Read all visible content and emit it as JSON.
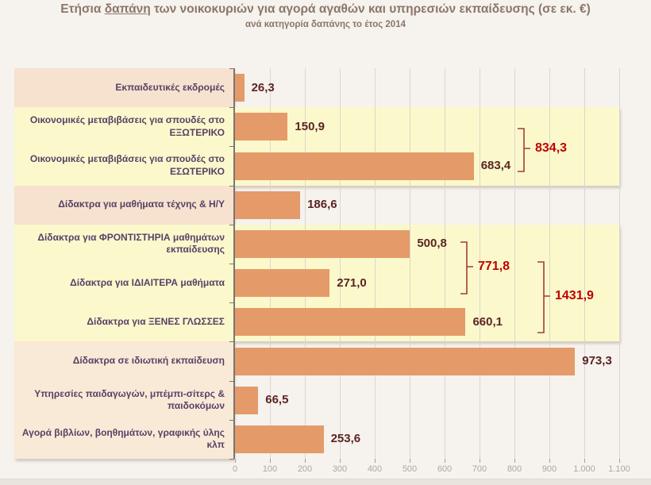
{
  "title": {
    "part1": "Ετήσια ",
    "underlined": "δαπάνη",
    "part2": " των νοικοκυριών για αγορά αγαθών και υπηρεσιών εκπαίδευσης (σε εκ. €)",
    "subtitle": "ανά κατηγορία δαπάνης το έτος 2014"
  },
  "chart_data": {
    "type": "bar",
    "orientation": "horizontal",
    "title": "Ετήσια δαπάνη των νοικοκυριών για αγορά αγαθών και υπηρεσιών εκπαίδευσης (σε εκ. €)",
    "subtitle": "ανά κατηγορία δαπάνης το έτος 2014",
    "unit": "εκ. €",
    "categories": [
      "Εκπαιδευτικές εκδρομές",
      "Οικονομικές μεταβιβάσεις για σπουδές στο ΕΞΩΤΕΡΙΚΟ",
      "Οικονομικές μεταβιβάσεις για σπουδές στο ΕΣΩΤΕΡΙΚΟ",
      "Δίδακτρα για μαθήματα τέχνης & Η/Υ",
      "Δίδακτρα για ΦΡΟΝΤΙΣΤΗΡΙΑ μαθημάτων εκπαίδευσης",
      "Δίδακτρα για ΙΔΙΑΙΤΕΡΑ μαθήματα",
      "Δίδακτρα για ΞΕΝΕΣ ΓΛΩΣΣΕΣ",
      "Δίδακτρα σε ιδιωτική εκπαίδευση",
      "Υπηρεσίες παιδαγωγών, μπέμπι-σίτερς & παιδοκόμων",
      "Αγορά βιβλίων, βοηθημάτων, γραφικής ύλης κλπ"
    ],
    "values": [
      26.3,
      150.9,
      683.4,
      186.6,
      500.8,
      271.0,
      660.1,
      973.3,
      66.5,
      253.6
    ],
    "value_labels": [
      "26,3",
      "150,9",
      "683,4",
      "186,6",
      "500,8",
      "271,0",
      "660,1",
      "973,3",
      "66,5",
      "253,6"
    ],
    "groups": [
      {
        "display": "834,3",
        "value": 834.3,
        "member_rows": [
          1,
          2
        ]
      },
      {
        "display": "771,8",
        "value": 771.8,
        "member_rows": [
          4,
          5
        ]
      },
      {
        "display": "1431,9",
        "value": 1431.9,
        "member_rows": [
          4,
          5,
          6
        ]
      }
    ],
    "x_tick_values": [
      0,
      100,
      200,
      300,
      400,
      500,
      600,
      700,
      800,
      900,
      1000,
      1100
    ],
    "x_tick_labels": [
      "0",
      "100",
      "200",
      "300",
      "400",
      "500",
      "600",
      "700",
      "800",
      "900",
      "1.000",
      "1.100"
    ],
    "xlim": [
      0,
      1100
    ],
    "grid": true,
    "legend": false,
    "row_blocks": [
      {
        "color_key": "pink_box",
        "row_start": 0,
        "row_end": 0,
        "full_width": false
      },
      {
        "color_key": "yellow_band",
        "row_start": 1,
        "row_end": 2,
        "full_width": true
      },
      {
        "color_key": "pink_box",
        "row_start": 3,
        "row_end": 3,
        "full_width": false
      },
      {
        "color_key": "yellow_band",
        "row_start": 4,
        "row_end": 6,
        "full_width": true
      },
      {
        "color_key": "cream_box",
        "row_start": 7,
        "row_end": 9,
        "full_width": false
      }
    ]
  },
  "colors": {
    "page_bg": "#f6f2ee",
    "bar": "#e49b69",
    "yellow_band": "#fbf9cc",
    "pink_box": "#f7e2cf",
    "cream_box": "#f9e9d7",
    "value_text": "#5c2424",
    "bracket_text": "#c00000",
    "bracket_line": "#a23c38",
    "category_text": "#594166",
    "title_text": "#8b7769",
    "axis_text": "#b3a69d",
    "gridline": "#dbd5ce",
    "axis_line": "#7a756f",
    "tick": "#a89f96",
    "bottom_strip": "#e9e5de"
  }
}
